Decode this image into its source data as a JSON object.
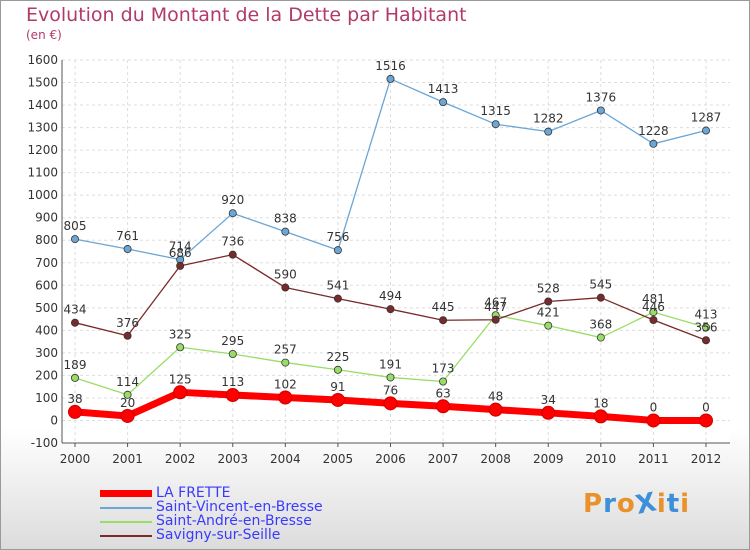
{
  "header": {
    "title": "Evolution du Montant de la Dette par Habitant",
    "unit": "(en €)"
  },
  "logo": {
    "text": "ProXiti",
    "letters": [
      "P",
      "r",
      "o",
      "X",
      "i",
      "t",
      "i"
    ],
    "colors": [
      "#e9912a",
      "#3c8fd8",
      "#e9912a",
      "#3c8fd8",
      "#e9912a",
      "#3c8fd8",
      "#e9912a"
    ]
  },
  "chart_data": {
    "type": "line",
    "title": "Evolution du Montant de la Dette par Habitant",
    "ylabel": "(en €)",
    "xlabel": "",
    "x": [
      "2000",
      "2001",
      "2002",
      "2003",
      "2004",
      "2005",
      "2006",
      "2007",
      "2008",
      "2009",
      "2010",
      "2011",
      "2012"
    ],
    "ylim": [
      -100,
      1600
    ],
    "yticks": [
      -100,
      0,
      100,
      200,
      300,
      400,
      500,
      600,
      700,
      800,
      900,
      1000,
      1100,
      1200,
      1300,
      1400,
      1500,
      1600
    ],
    "grid": true,
    "legend_position": "bottom-left",
    "series": [
      {
        "name": "LA FRETTE",
        "color": "#ff0000",
        "values": [
          38,
          20,
          125,
          113,
          102,
          91,
          76,
          63,
          48,
          34,
          18,
          0,
          0
        ]
      },
      {
        "name": "Saint-Vincent-en-Bresse",
        "color": "#6aa6d6",
        "values": [
          805,
          761,
          714,
          920,
          838,
          756,
          1516,
          1413,
          1315,
          1282,
          1376,
          1228,
          1287
        ]
      },
      {
        "name": "Saint-André-en-Bresse",
        "color": "#99dd66",
        "values": [
          189,
          114,
          325,
          295,
          257,
          225,
          191,
          173,
          467,
          421,
          368,
          481,
          413
        ]
      },
      {
        "name": "Savigny-sur-Seille",
        "color": "#7a2a2a",
        "values": [
          434,
          376,
          686,
          736,
          590,
          541,
          494,
          445,
          447,
          528,
          545,
          446,
          356
        ]
      }
    ]
  }
}
